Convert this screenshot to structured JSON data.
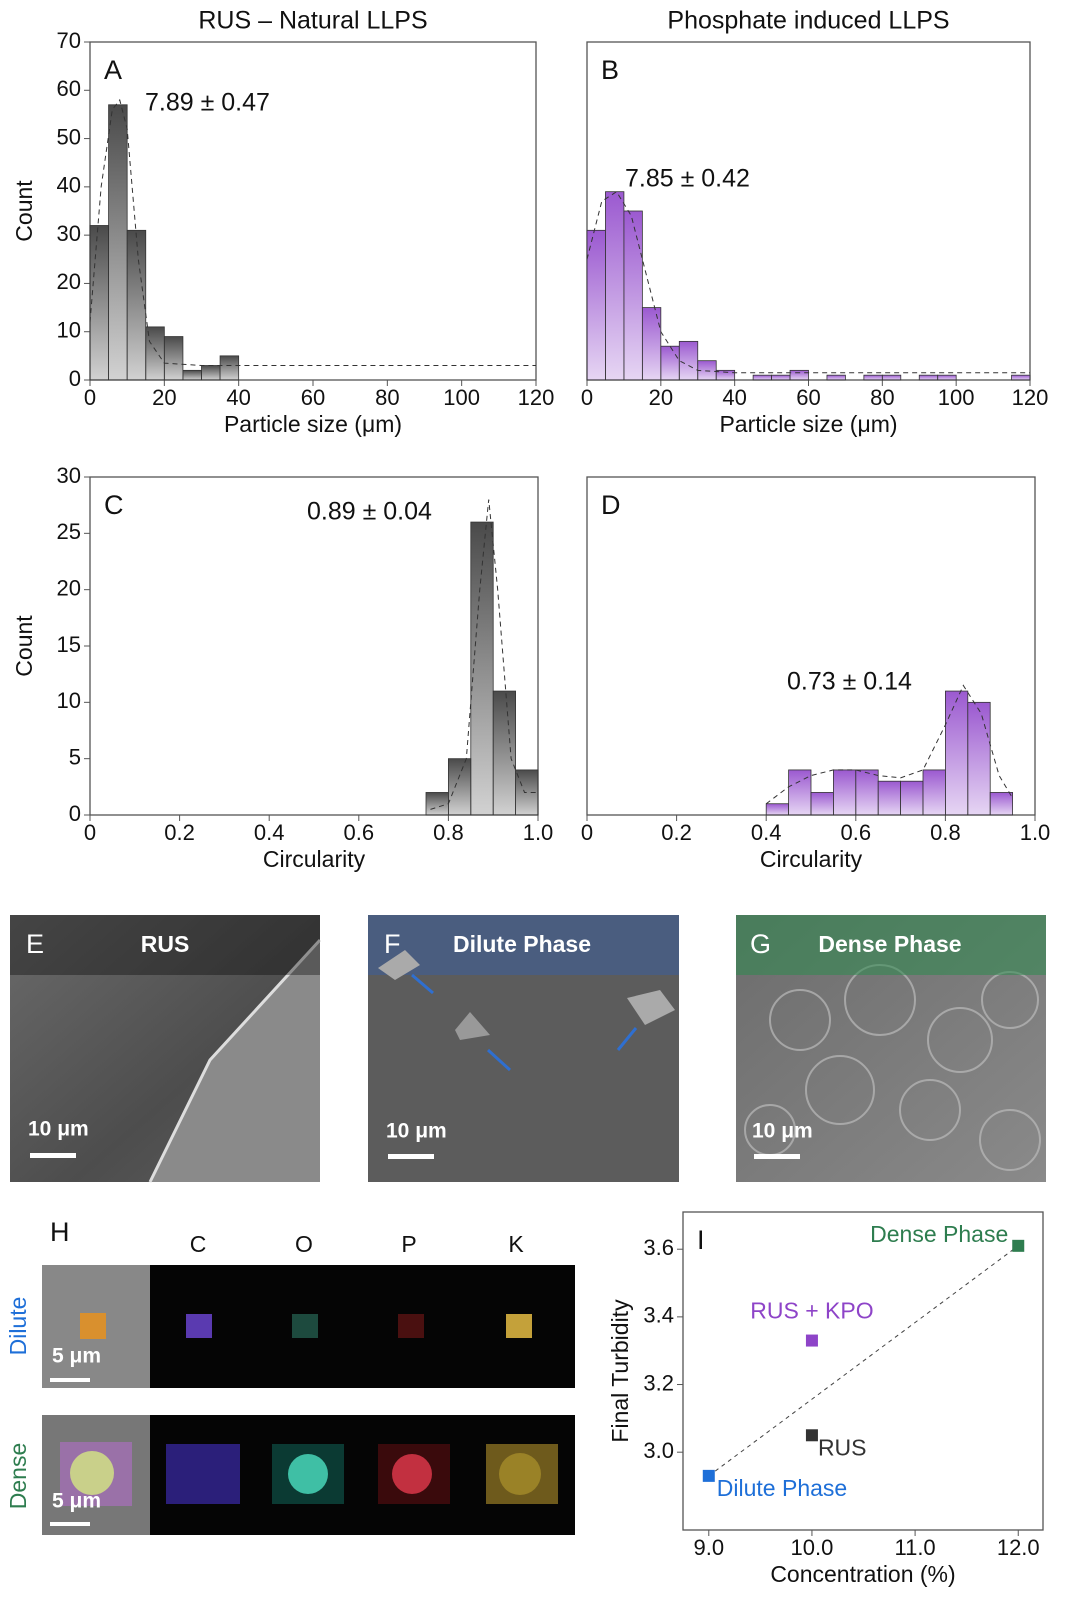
{
  "chart_data": [
    {
      "type": "histogram",
      "title": "RUS – Natural LLPS",
      "panel_label": "A",
      "annotation": "7.89 ± 0.47",
      "x_label": "Particle size (μm)",
      "y_label": "Count",
      "color": "#4a4a4a",
      "bins": [
        0,
        5,
        10,
        15,
        20,
        25,
        30,
        35,
        40
      ],
      "values": [
        32,
        57,
        31,
        11,
        9,
        2,
        3,
        5
      ],
      "fit": {
        "x": [
          0,
          3,
          6,
          8,
          10,
          13,
          16,
          20,
          30,
          60,
          120
        ],
        "values": [
          12,
          40,
          56,
          58,
          52,
          25,
          8,
          3.5,
          3,
          3,
          3
        ]
      },
      "xlim": [
        0,
        120
      ],
      "xticks": [
        0,
        20,
        40,
        60,
        80,
        100,
        120
      ],
      "ylim": [
        0,
        70
      ],
      "yticks": [
        0,
        10,
        20,
        30,
        40,
        50,
        60,
        70
      ]
    },
    {
      "type": "histogram",
      "title": "Phosphate induced LLPS",
      "panel_label": "B",
      "annotation": "7.85 ± 0.42",
      "x_label": "Particle size (μm)",
      "color": "#9b59d0",
      "bins": [
        0,
        5,
        10,
        15,
        20,
        25,
        30,
        35,
        40,
        45,
        50,
        55,
        60,
        65,
        70,
        75,
        80,
        85,
        90,
        95,
        100,
        105,
        110,
        115,
        120
      ],
      "values": [
        31,
        39,
        35,
        15,
        7,
        8,
        4,
        2,
        0,
        1,
        1,
        2,
        0,
        1,
        0,
        1,
        1,
        0,
        1,
        1,
        0,
        0,
        0,
        1
      ],
      "fit": {
        "x": [
          0,
          4,
          8,
          12,
          16,
          20,
          25,
          30,
          40,
          60,
          120
        ],
        "values": [
          25,
          37,
          39,
          34,
          22,
          10,
          4,
          2,
          1.5,
          1.5,
          1.5
        ]
      },
      "xlim": [
        0,
        120
      ],
      "xticks": [
        0,
        20,
        40,
        60,
        80,
        100,
        120
      ],
      "ylim": [
        0,
        70
      ]
    },
    {
      "type": "histogram",
      "panel_label": "C",
      "annotation": "0.89 ± 0.04",
      "x_label": "Circularity",
      "y_label": "Count",
      "color": "#4a4a4a",
      "bins": [
        0.75,
        0.8,
        0.85,
        0.9,
        0.95,
        1.0
      ],
      "values": [
        2,
        5,
        26,
        11,
        4
      ],
      "fit": {
        "x": [
          0.76,
          0.8,
          0.84,
          0.87,
          0.89,
          0.91,
          0.94,
          0.97,
          1.0
        ],
        "values": [
          0.5,
          1,
          5,
          20,
          28,
          20,
          5,
          2,
          2
        ]
      },
      "xlim": [
        0,
        1
      ],
      "xticks": [
        0,
        0.2,
        0.4,
        0.6,
        0.8,
        {
          "value": 1,
          "label": "1.0"
        }
      ],
      "ylim": [
        0,
        30
      ],
      "yticks": [
        0,
        5,
        10,
        15,
        20,
        25,
        30
      ]
    },
    {
      "type": "histogram",
      "panel_label": "D",
      "annotation": "0.73 ± 0.14",
      "x_label": "Circularity",
      "color": "#9b59d0",
      "bins": [
        0.4,
        0.45,
        0.5,
        0.55,
        0.6,
        0.65,
        0.7,
        0.75,
        0.8,
        0.85,
        0.9,
        0.95
      ],
      "values": [
        1,
        4,
        2,
        4,
        4,
        3,
        3,
        4,
        11,
        10,
        2
      ],
      "fit": {
        "x": [
          0.4,
          0.45,
          0.5,
          0.55,
          0.6,
          0.65,
          0.7,
          0.75,
          0.8,
          0.84,
          0.88,
          0.92,
          0.95
        ],
        "values": [
          1,
          2.5,
          3.5,
          4,
          4,
          3.5,
          3.3,
          4,
          8,
          11.5,
          9,
          3.5,
          1.5
        ]
      },
      "xlim": [
        0,
        1
      ],
      "xticks": [
        0,
        0.2,
        0.4,
        0.6,
        0.8,
        {
          "value": 1,
          "label": "1.0"
        }
      ],
      "ylim": [
        0,
        30
      ]
    },
    {
      "type": "scatter",
      "panel_label": "I",
      "x_label": "Concentration (%)",
      "y_label": "Final Turbidity",
      "series": [
        {
          "name": "Dense Phase",
          "color": "#2e7d4f",
          "x": [
            12.0
          ],
          "values": [
            3.61
          ]
        },
        {
          "name": "RUS + KPO",
          "color": "#8e44c8",
          "x": [
            10.0
          ],
          "values": [
            3.33
          ]
        },
        {
          "name": "RUS",
          "color": "#333333",
          "x": [
            10.0
          ],
          "values": [
            3.05
          ]
        },
        {
          "name": "Dilute Phase",
          "color": "#1e6fd8",
          "x": [
            9.0
          ],
          "values": [
            2.93
          ]
        }
      ],
      "trendline": {
        "x": [
          9.0,
          12.0
        ],
        "values": [
          2.93,
          3.61
        ]
      },
      "xlim": [
        8.75,
        12.24
      ],
      "xticks": [
        {
          "value": 9,
          "label": "9.0"
        },
        {
          "value": 10,
          "label": "10.0"
        },
        {
          "value": 11,
          "label": "11.0"
        },
        {
          "value": 12,
          "label": "12.0"
        }
      ],
      "ylim": [
        2.77,
        3.71
      ],
      "yticks": [
        {
          "value": 3,
          "label": "3.0"
        },
        3.2,
        3.4,
        3.6
      ]
    }
  ],
  "images": {
    "E": {
      "panel_label": "E",
      "label": "RUS",
      "scale": "10 μm"
    },
    "F": {
      "panel_label": "F",
      "label": "Dilute Phase",
      "scale": "10 μm"
    },
    "G": {
      "panel_label": "G",
      "label": "Dense Phase",
      "scale": "10 μm"
    },
    "H": {
      "panel_label": "H",
      "elements": [
        "C",
        "O",
        "P",
        "K"
      ],
      "rows": [
        {
          "label": "Dilute",
          "scale": "5 μm"
        },
        {
          "label": "Dense",
          "scale": "5 μm"
        }
      ]
    }
  }
}
